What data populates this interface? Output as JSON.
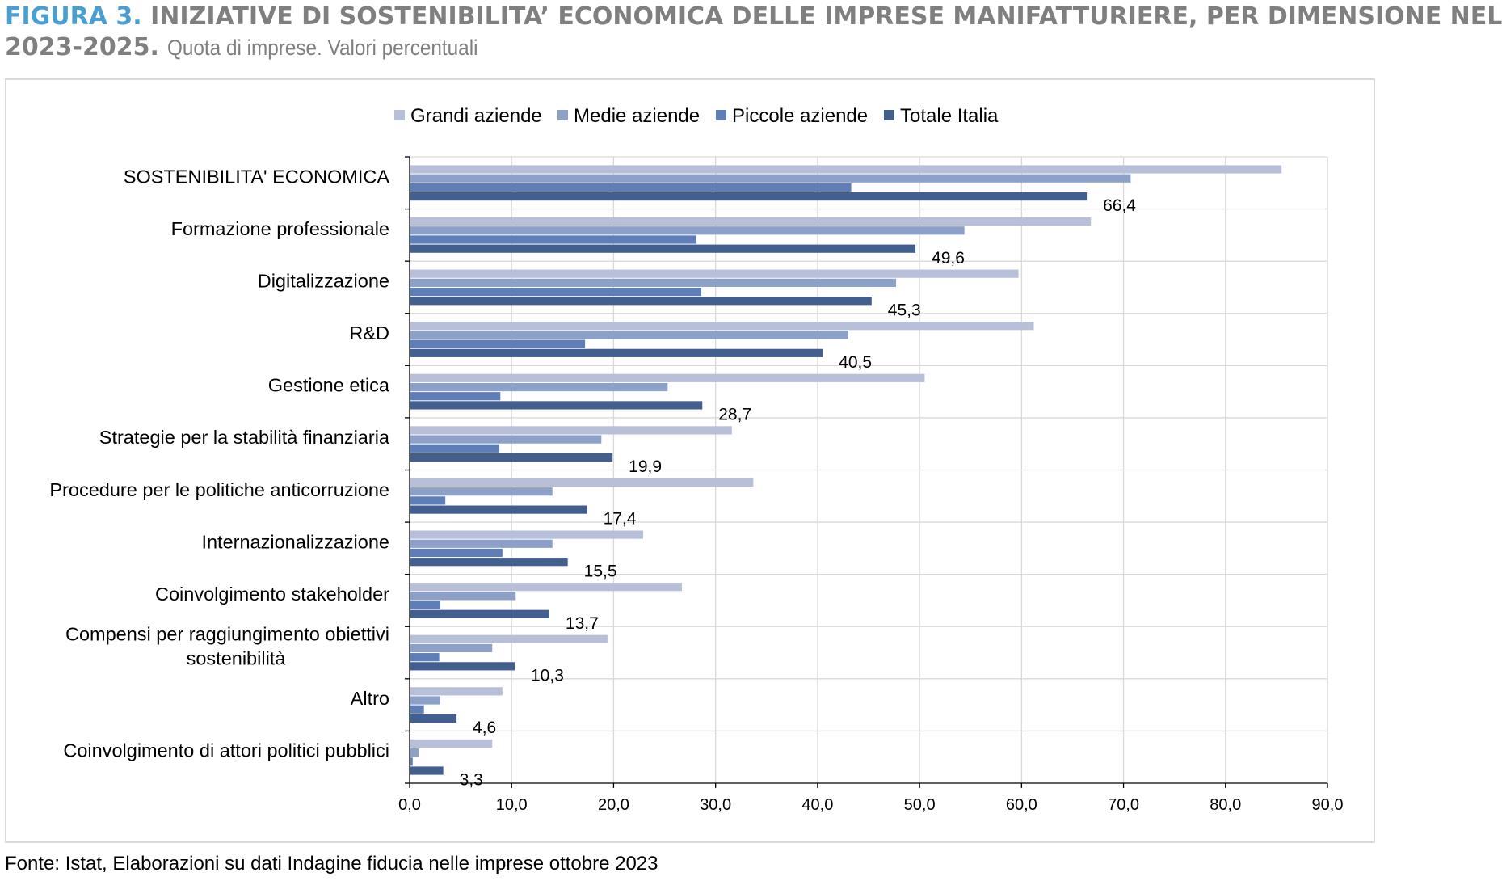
{
  "header": {
    "figure_label": "FIGURA 3.",
    "title_line1": "INIZIATIVE DI SOSTENIBILITA’ ECONOMICA DELLE IMPRESE MANIFATTURIERE, PER DIMENSIONE NEL",
    "title_line2": "2023-2025.",
    "subtitle": "Quota di imprese. Valori percentuali"
  },
  "footer": {
    "source": "Fonte: Istat, Elaborazioni su dati Indagine fiducia nelle imprese ottobre 2023"
  },
  "chart_data": {
    "type": "bar",
    "orientation": "horizontal",
    "title": "INIZIATIVE DI SOSTENIBILITA’ ECONOMICA DELLE IMPRESE MANIFATTURIERE, PER DIMENSIONE NEL 2023-2025.",
    "subtitle": "Quota di imprese. Valori percentuali",
    "xlabel": "",
    "ylabel": "",
    "xlim": [
      0,
      90
    ],
    "x_ticks": [
      "0,0",
      "10,0",
      "20,0",
      "30,0",
      "40,0",
      "50,0",
      "60,0",
      "70,0",
      "80,0",
      "90,0"
    ],
    "grid": true,
    "legend_position": "top-center",
    "categories": [
      [
        "SOSTENIBILITA' ECONOMICA"
      ],
      [
        "Formazione professionale"
      ],
      [
        "Digitalizzazione"
      ],
      [
        "R&D"
      ],
      [
        "Gestione etica"
      ],
      [
        "Strategie per la stabilità finanziaria"
      ],
      [
        "Procedure per le politiche anticorruzione"
      ],
      [
        "Internazionalizzazione"
      ],
      [
        "Coinvolgimento stakeholder"
      ],
      [
        "Compensi per raggiungimento obiettivi",
        "sostenibilità"
      ],
      [
        "Altro"
      ],
      [
        "Coinvolgimento di attori politici pubblici"
      ]
    ],
    "series": [
      {
        "name": "Grandi aziende",
        "color": "#b8c0d9",
        "values": [
          85.5,
          66.8,
          59.7,
          61.2,
          50.5,
          31.6,
          33.7,
          22.9,
          26.7,
          19.4,
          9.1,
          8.1
        ]
      },
      {
        "name": "Medie aziende",
        "color": "#8da0c8",
        "values": [
          70.7,
          54.4,
          47.7,
          43.0,
          25.3,
          18.8,
          14.0,
          14.0,
          10.4,
          8.1,
          3.0,
          0.9
        ]
      },
      {
        "name": "Piccole aziende",
        "color": "#5f7eb7",
        "values": [
          43.3,
          28.1,
          28.6,
          17.2,
          8.9,
          8.8,
          3.5,
          9.1,
          3.0,
          2.9,
          1.4,
          0.3
        ]
      },
      {
        "name": "Totale Italia",
        "color": "#435f8f",
        "values": [
          66.4,
          49.6,
          45.3,
          40.5,
          28.7,
          19.9,
          17.4,
          15.5,
          13.7,
          10.3,
          4.6,
          3.3
        ],
        "labels": [
          "66,4",
          "49,6",
          "45,3",
          "40,5",
          "28,7",
          "19,9",
          "17,4",
          "15,5",
          "13,7",
          "10,3",
          "4,6",
          "3,3"
        ]
      }
    ]
  }
}
